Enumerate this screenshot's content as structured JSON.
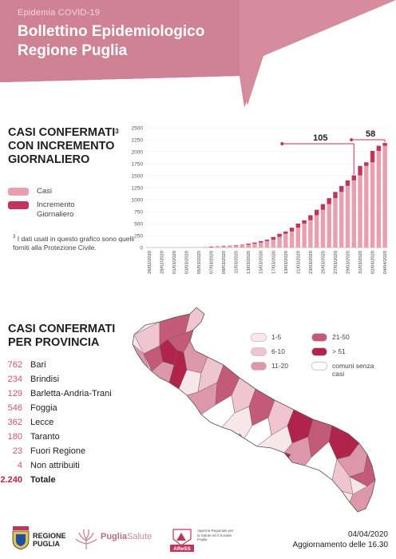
{
  "header": {
    "kicker": "Epidemia COVID-19",
    "title": "Bollettino Epidemiologico Regione Puglia",
    "bg_color": "#d4899a",
    "title_band_color": "#c06878"
  },
  "section_chart": {
    "title_line1": "CASI CONFERMATI",
    "title_sup": "3",
    "title_line2": "CON INCREMENTO",
    "title_line3": "GIORNALIERO",
    "legend": [
      {
        "label": "Casi",
        "color": "#e8a0ae"
      },
      {
        "label": "Incremento Giornaliero",
        "color": "#c0365a"
      }
    ],
    "footnote_sup": "3",
    "footnote": "I dati usati in questo grafico sono quelli forniti alla Protezione Civile."
  },
  "chart_data": {
    "type": "bar",
    "ylim": [
      0,
      2500
    ],
    "yticks": [
      0,
      250,
      500,
      750,
      1000,
      1250,
      1500,
      1750,
      2000,
      2250,
      2500
    ],
    "x": [
      "26/02/2020",
      "27/02/2020",
      "28/02/2020",
      "29/02/2020",
      "01/03/2020",
      "02/03/2020",
      "03/03/2020",
      "04/03/2020",
      "05/03/2020",
      "06/03/2020",
      "07/03/2020",
      "08/03/2020",
      "09/03/2020",
      "10/03/2020",
      "11/03/2020",
      "12/03/2020",
      "13/03/2020",
      "14/03/2020",
      "15/03/2020",
      "16/03/2020",
      "17/03/2020",
      "18/03/2020",
      "19/03/2020",
      "20/03/2020",
      "21/03/2020",
      "22/03/2020",
      "23/03/2020",
      "24/03/2020",
      "25/03/2020",
      "26/03/2020",
      "27/03/2020",
      "28/03/2020",
      "29/03/2020",
      "30/03/2020",
      "31/03/2020",
      "01/04/2020",
      "02/04/2020",
      "03/04/2020",
      "04/04/2020"
    ],
    "xtick_labels": [
      "26/02/2020",
      "28/02/2020",
      "01/03/2020",
      "03/03/2020",
      "05/03/2020",
      "07/03/2020",
      "09/03/2020",
      "11/03/2020",
      "13/03/2020",
      "15/03/2020",
      "17/03/2020",
      "19/03/2020",
      "21/03/2020",
      "23/03/2020",
      "25/03/2020",
      "27/03/2020",
      "29/03/2020",
      "31/03/2020",
      "02/04/2020",
      "04/04/2020"
    ],
    "series": [
      {
        "name": "Casi",
        "values": [
          0,
          0,
          0,
          0,
          0,
          1,
          1,
          3,
          3,
          6,
          20,
          26,
          36,
          42,
          51,
          60,
          82,
          105,
          135,
          164,
          222,
          287,
          335,
          415,
          501,
          569,
          675,
          788,
          907,
          1031,
          1161,
          1286,
          1402,
          1507,
          1705,
          1779,
          2017,
          2124,
          2182
        ]
      },
      {
        "name": "Incremento Giornaliero",
        "values": [
          0,
          0,
          0,
          0,
          0,
          1,
          0,
          2,
          0,
          3,
          14,
          6,
          10,
          6,
          9,
          9,
          22,
          23,
          30,
          29,
          58,
          65,
          48,
          80,
          86,
          68,
          106,
          113,
          119,
          124,
          130,
          125,
          116,
          105,
          198,
          74,
          238,
          107,
          58
        ]
      }
    ],
    "annotations": [
      {
        "text": "105",
        "at": "30/03/2020"
      },
      {
        "text": "58",
        "at": "04/04/2020"
      }
    ]
  },
  "section_map": {
    "title_line1": "CASI CONFERMATI",
    "title_line2": "PER PROVINCIA",
    "provinces": [
      {
        "value": "762",
        "name": "Bari"
      },
      {
        "value": "234",
        "name": "Brindisi"
      },
      {
        "value": "129",
        "name": "Barletta-Andria-Trani"
      },
      {
        "value": "546",
        "name": "Foggia"
      },
      {
        "value": "362",
        "name": "Lecce"
      },
      {
        "value": "180",
        "name": "Taranto"
      },
      {
        "value": "23",
        "name": "Fuori Regione"
      },
      {
        "value": "4",
        "name": "Non attribuiti"
      }
    ],
    "total": {
      "value": "2.240",
      "name": "Totale"
    },
    "legend": [
      {
        "label": "1-5",
        "color": "#f7e6ea"
      },
      {
        "label": "6-10",
        "color": "#efc6cf"
      },
      {
        "label": "11-20",
        "color": "#dc98aa"
      },
      {
        "label": "21-50",
        "color": "#c25a78"
      },
      {
        "label": "> 51",
        "color": "#b0244c"
      },
      {
        "label": "comuni senza casi",
        "color": "#ffffff"
      }
    ]
  },
  "footer": {
    "logo1_text_line1": "REGIONE",
    "logo1_text_line2": "PUGLIA",
    "logo2_bold": "Puglia",
    "logo2_light": "Salute",
    "logo3_text": "Agenzia Regionale per la Salute ed il Sociale Puglia",
    "logo3_badge": "AReSS",
    "date": "04/04/2020",
    "update": "Aggiornamento delle 16.30"
  }
}
